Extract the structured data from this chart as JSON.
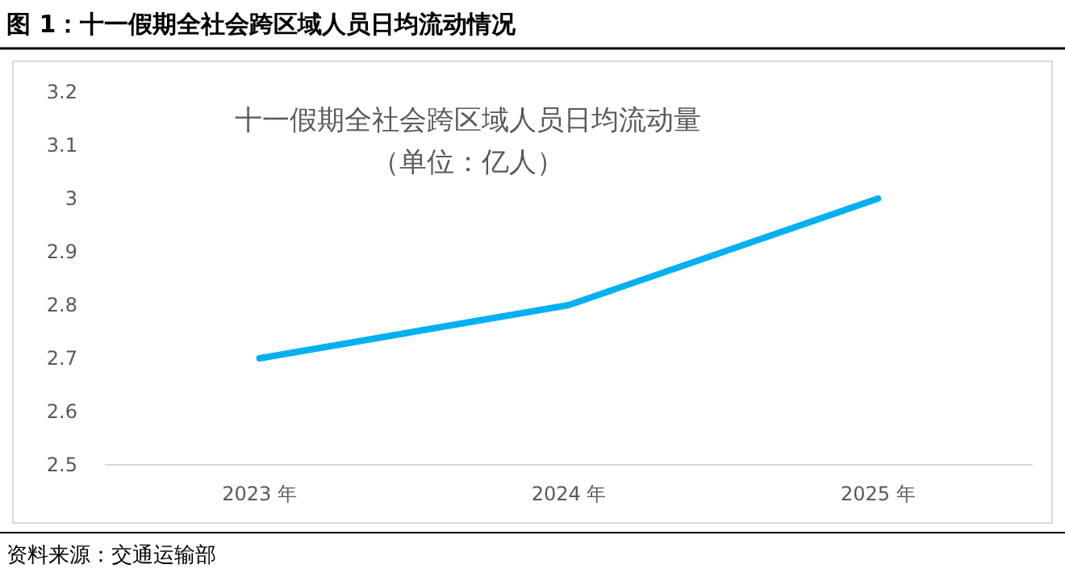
{
  "chart_data": {
    "type": "line",
    "title": "图 1：十一假期全社会跨区域人员日均流动情况",
    "subtitle": "十一假期全社会跨区域人员日均流动量",
    "annotations": [
      "（单位：亿人）",
      "资料来源：交通运输部"
    ],
    "categories": [
      "2023 年",
      "2024 年",
      "2025 年"
    ],
    "series": [
      {
        "color": "#00b0f0",
        "values": [
          2.7,
          2.8,
          3.0
        ]
      }
    ],
    "ylim": [
      2.5,
      3.2
    ],
    "yticks": [
      2.5,
      2.6,
      2.7,
      2.8,
      2.9,
      3,
      3.1,
      3.2
    ],
    "grid": false,
    "marker": "none",
    "line_style": "solid"
  }
}
